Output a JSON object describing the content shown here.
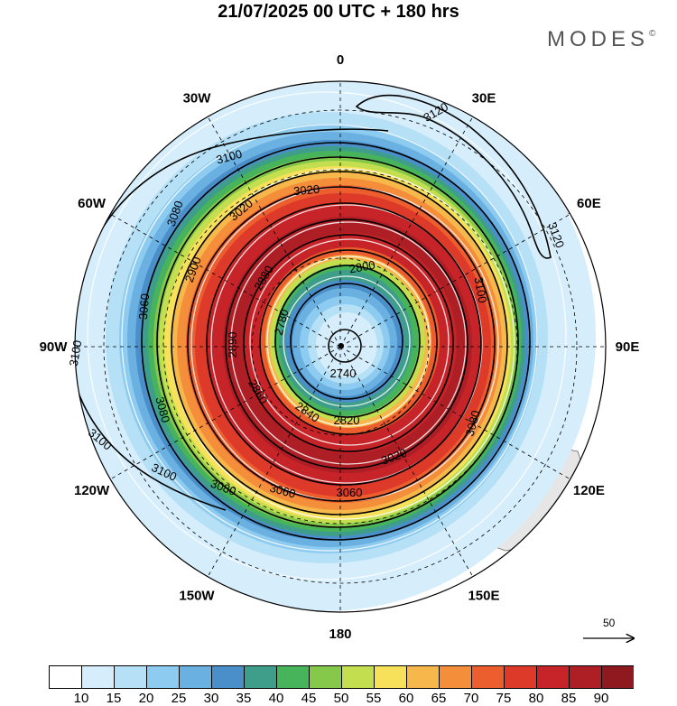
{
  "title": "21/07/2025  00 UTC  + 180 hrs",
  "brand": "MODES",
  "brand_mark": "©",
  "lon_labels": [
    {
      "text": "0",
      "angle": 0
    },
    {
      "text": "30E",
      "angle": 30
    },
    {
      "text": "60E",
      "angle": 60
    },
    {
      "text": "90E",
      "angle": 90
    },
    {
      "text": "120E",
      "angle": 120
    },
    {
      "text": "150E",
      "angle": 150
    },
    {
      "text": "180",
      "angle": 180
    },
    {
      "text": "150W",
      "angle": 210
    },
    {
      "text": "120W",
      "angle": 240
    },
    {
      "text": "90W",
      "angle": 270
    },
    {
      "text": "60W",
      "angle": 300
    },
    {
      "text": "30W",
      "angle": 330
    }
  ],
  "contour_labels": [
    "3120",
    "3120",
    "3100",
    "3100",
    "3100",
    "3100",
    "3100",
    "3080",
    "3080",
    "3080",
    "3080",
    "3060",
    "3060",
    "3060",
    "3020",
    "3020",
    "3020",
    "2900",
    "2890",
    "2880",
    "2860",
    "2840",
    "2820",
    "2800",
    "2780",
    "2740"
  ],
  "colorbar": {
    "colors": [
      "#ffffff",
      "#d6eefb",
      "#b5e0f6",
      "#8ecbf0",
      "#6ab1e2",
      "#4a8fc9",
      "#3e9e8a",
      "#47b45c",
      "#86c94a",
      "#c3df50",
      "#f7e05a",
      "#f6b84a",
      "#f58e3a",
      "#ec5e2e",
      "#de3a2a",
      "#c62428",
      "#ae1e25",
      "#8e1a1f"
    ],
    "labels": [
      "10",
      "15",
      "20",
      "25",
      "30",
      "35",
      "40",
      "45",
      "50",
      "55",
      "60",
      "65",
      "70",
      "75",
      "80",
      "85",
      "90"
    ]
  },
  "reference_vector": "50"
}
